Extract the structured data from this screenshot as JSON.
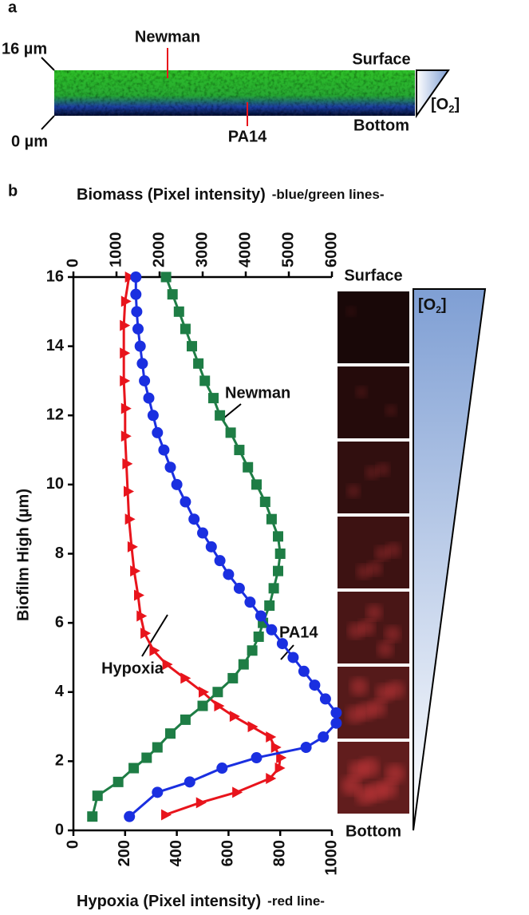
{
  "panel_a": {
    "label": "a",
    "top_label": "16 µm",
    "bottom_label": "0 µm",
    "strain_top": "Newman",
    "strain_bottom": "PA14",
    "surface": "Surface",
    "bottom": "Bottom",
    "o2": [
      "[O",
      "2",
      "]"
    ]
  },
  "chart_data": {
    "type": "line",
    "panel_label": "b",
    "x2_label": "Biomass (Pixel intensity)",
    "x2_label_note": "-blue/green lines-",
    "x_label": "Hypoxia (Pixel intensity)",
    "x_label_note": "-red line-",
    "y_label": "Biofilm High (µm)",
    "xlim": [
      0,
      1000
    ],
    "xticks": [
      0,
      200,
      400,
      600,
      800,
      1000
    ],
    "x2lim": [
      0,
      6000
    ],
    "x2ticks": [
      0,
      1000,
      2000,
      3000,
      4000,
      5000,
      6000
    ],
    "ylim": [
      0,
      16
    ],
    "yticks": [
      0,
      2,
      4,
      6,
      8,
      10,
      12,
      14,
      16
    ],
    "surface_label": "Surface",
    "bottom_label": "Bottom",
    "o2_label": [
      "[O",
      "2",
      "]"
    ],
    "series": [
      {
        "name": "Hypoxia",
        "color": "#e8141c",
        "marker": "triangle",
        "axis": "x",
        "y": [
          0.45,
          0.8,
          1.1,
          1.5,
          1.8,
          2.1,
          2.4,
          2.7,
          3,
          3.3,
          3.6,
          4,
          4.4,
          4.8,
          5.2,
          5.7,
          6.2,
          6.8,
          7.5,
          8.2,
          9,
          9.8,
          10.6,
          11.4,
          12.2,
          13,
          13.8,
          14.6,
          15.3,
          16
        ],
        "x": [
          355,
          490,
          630,
          760,
          795,
          800,
          780,
          760,
          690,
          620,
          560,
          500,
          430,
          360,
          310,
          275,
          260,
          250,
          235,
          225,
          215,
          210,
          205,
          200,
          200,
          195,
          195,
          195,
          200,
          215
        ]
      },
      {
        "name": "Newman",
        "color": "#1e7d45",
        "marker": "square",
        "axis": "x2",
        "y": [
          0.4,
          1,
          1.4,
          1.8,
          2.1,
          2.4,
          2.8,
          3.2,
          3.6,
          4,
          4.4,
          4.8,
          5.2,
          5.6,
          6,
          6.5,
          7,
          7.5,
          8,
          8.5,
          9,
          9.5,
          10,
          10.5,
          11,
          11.5,
          12,
          12.5,
          13,
          13.5,
          14,
          14.5,
          15,
          15.5,
          16
        ],
        "x": [
          440,
          560,
          1040,
          1400,
          1700,
          1950,
          2250,
          2600,
          3000,
          3350,
          3700,
          3950,
          4150,
          4300,
          4400,
          4550,
          4650,
          4750,
          4800,
          4750,
          4600,
          4450,
          4250,
          4050,
          3850,
          3650,
          3400,
          3250,
          3050,
          2900,
          2750,
          2600,
          2450,
          2300,
          2150
        ]
      },
      {
        "name": "PA14",
        "color": "#1a2fe0",
        "marker": "circle",
        "axis": "x2",
        "y": [
          0.4,
          1.1,
          1.4,
          1.8,
          2.1,
          2.4,
          2.7,
          3.1,
          3.4,
          3.8,
          4.2,
          4.6,
          5,
          5.4,
          5.8,
          6.2,
          6.6,
          7,
          7.4,
          7.8,
          8.2,
          8.6,
          9,
          9.5,
          10,
          10.5,
          11,
          11.5,
          12,
          12.5,
          13,
          13.5,
          14,
          14.5,
          15,
          15.5,
          16
        ],
        "x": [
          1300,
          1950,
          2700,
          3450,
          4250,
          5400,
          5800,
          6100,
          6100,
          5850,
          5600,
          5350,
          5100,
          4850,
          4600,
          4350,
          4100,
          3850,
          3600,
          3400,
          3200,
          3000,
          2800,
          2600,
          2400,
          2250,
          2100,
          1950,
          1850,
          1750,
          1650,
          1600,
          1550,
          1500,
          1470,
          1450,
          1450
        ]
      }
    ]
  }
}
